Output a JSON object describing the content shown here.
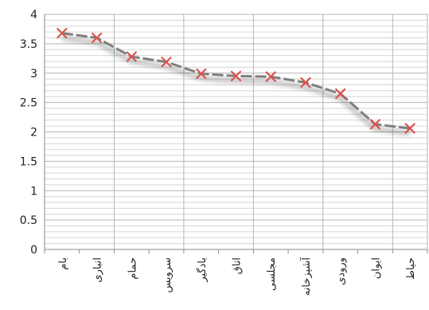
{
  "chart_data": {
    "type": "line",
    "categories": [
      "بام",
      "انبار‌ی",
      "حمام",
      "سرویس",
      "بادگیر",
      "اتاق",
      "مجلسی",
      "آشپزخانه",
      "ورودی",
      "ایوان",
      "حیاط"
    ],
    "series": [
      {
        "values": [
          3.68,
          3.6,
          3.28,
          3.19,
          2.99,
          2.95,
          2.94,
          2.84,
          2.65,
          2.13,
          2.06
        ]
      }
    ],
    "yticks": [
      "0",
      "0.5",
      "1",
      "1.5",
      "2",
      "2.5",
      "3",
      "3.5",
      "4"
    ],
    "ylim": [
      0,
      4
    ],
    "grid": "minor horizontal, vertical every 2 categories",
    "line_color": "#7f7f7f",
    "marker_color": "#d9534f",
    "marker": "x"
  }
}
